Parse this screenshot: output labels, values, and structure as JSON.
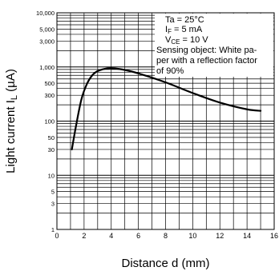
{
  "chart_data": {
    "type": "line",
    "title": "",
    "xlabel": "Distance d (mm)",
    "ylabel": "Light current  I",
    "ylabel_sub": "L",
    "ylabel_unit": " (µA)",
    "x_scale": "linear",
    "y_scale": "log",
    "xlim": [
      0,
      16
    ],
    "ylim": [
      1,
      10000
    ],
    "grid": true,
    "x_ticks": [
      "0",
      "2",
      "4",
      "6",
      "8",
      "10",
      "12",
      "14",
      "16"
    ],
    "y_ticks": [
      {
        "value": 1,
        "label": "1"
      },
      {
        "value": 3,
        "label": "3"
      },
      {
        "value": 5,
        "label": "5"
      },
      {
        "value": 10,
        "label": "10"
      },
      {
        "value": 30,
        "label": "30"
      },
      {
        "value": 50,
        "label": "50"
      },
      {
        "value": 100,
        "label": "100"
      },
      {
        "value": 300,
        "label": "300"
      },
      {
        "value": 500,
        "label": "500"
      },
      {
        "value": 1000,
        "label": "1,000"
      },
      {
        "value": 3000,
        "label": "3,000"
      },
      {
        "value": 5000,
        "label": "5,000"
      },
      {
        "value": 10000,
        "label": "10,000"
      }
    ],
    "series": [
      {
        "x": [
          1.1,
          1.4,
          1.8,
          2.2,
          2.6,
          3.0,
          3.5,
          4.0,
          5.0,
          6.0,
          8.0,
          10.0,
          12.0,
          14.0,
          15.0
        ],
        "y": [
          30,
          80,
          250,
          480,
          700,
          840,
          920,
          950,
          880,
          760,
          520,
          330,
          220,
          165,
          155
        ]
      }
    ],
    "annotations": [
      {
        "label": "Ta = 25°C"
      },
      {
        "label": "I",
        "sub": "F",
        "rest": " = 5 mA"
      },
      {
        "label": "V",
        "sub": "CE",
        "rest": " = 10 V"
      }
    ],
    "note_lines": [
      "Sensing object: White pa-",
      "per with a reflection factor",
      "of 90%"
    ]
  }
}
